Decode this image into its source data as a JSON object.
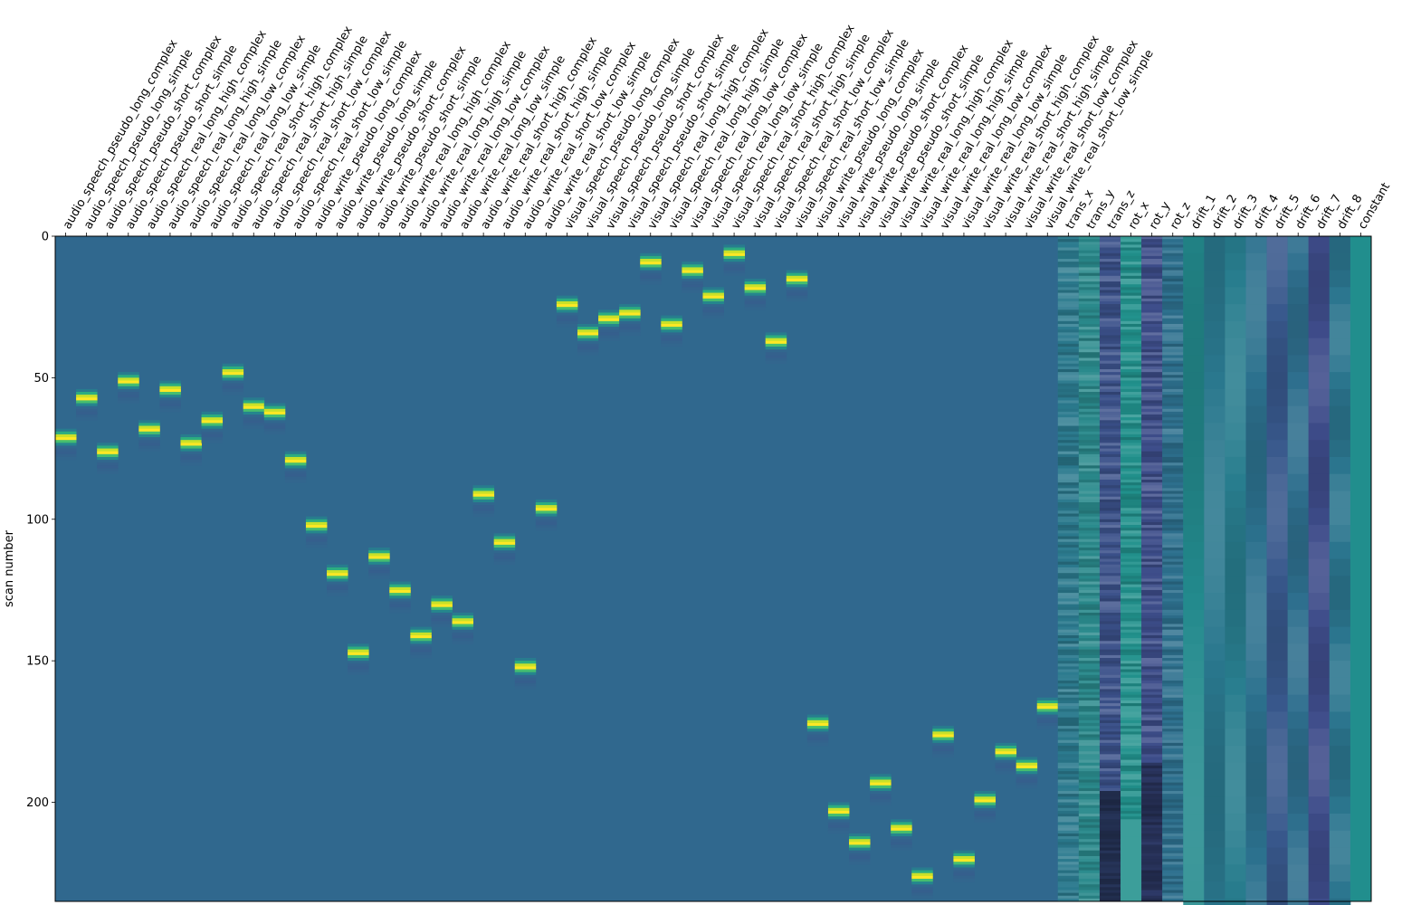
{
  "chart_data": {
    "type": "heatmap",
    "title": "",
    "xlabel": "",
    "ylabel": "scan number",
    "n_scans": 235,
    "ylim": [
      0,
      235
    ],
    "y_ticks": [
      0,
      50,
      100,
      150,
      200
    ],
    "grid": false,
    "legend": "none",
    "colormap": "viridis",
    "colors": {
      "background": "#30688e",
      "peak": "#fde725",
      "colormap_stops": [
        "#440154",
        "#482878",
        "#3e4989",
        "#31688e",
        "#26828e",
        "#1f9e89",
        "#35b779",
        "#6ece58",
        "#b5de2b",
        "#fde725"
      ]
    },
    "columns": [
      "audio_speech_pseudo_long_complex",
      "audio_speech_pseudo_long_simple",
      "audio_speech_pseudo_short_complex",
      "audio_speech_pseudo_short_simple",
      "audio_speech_real_long_high_complex",
      "audio_speech_real_long_high_simple",
      "audio_speech_real_long_low_complex",
      "audio_speech_real_long_low_simple",
      "audio_speech_real_short_high_complex",
      "audio_speech_real_short_high_simple",
      "audio_speech_real_short_low_complex",
      "audio_speech_real_short_low_simple",
      "audio_write_pseudo_long_complex",
      "audio_write_pseudo_long_simple",
      "audio_write_pseudo_short_complex",
      "audio_write_pseudo_short_simple",
      "audio_write_real_long_high_complex",
      "audio_write_real_long_high_simple",
      "audio_write_real_long_low_complex",
      "audio_write_real_long_low_simple",
      "audio_write_real_short_high_complex",
      "audio_write_real_short_high_simple",
      "audio_write_real_short_low_complex",
      "audio_write_real_short_low_simple",
      "visual_speech_pseudo_long_complex",
      "visual_speech_pseudo_long_simple",
      "visual_speech_pseudo_short_complex",
      "visual_speech_pseudo_short_simple",
      "visual_speech_real_long_high_complex",
      "visual_speech_real_long_high_simple",
      "visual_speech_real_long_low_complex",
      "visual_speech_real_long_low_simple",
      "visual_speech_real_short_high_complex",
      "visual_speech_real_short_high_simple",
      "visual_speech_real_short_low_complex",
      "visual_speech_real_short_low_simple",
      "visual_write_pseudo_long_complex",
      "visual_write_pseudo_long_simple",
      "visual_write_pseudo_short_complex",
      "visual_write_pseudo_short_simple",
      "visual_write_real_long_high_complex",
      "visual_write_real_long_high_simple",
      "visual_write_real_long_low_complex",
      "visual_write_real_long_low_simple",
      "visual_write_real_short_high_complex",
      "visual_write_real_short_high_simple",
      "visual_write_real_short_low_complex",
      "visual_write_real_short_low_simple",
      "trans_x",
      "trans_y",
      "trans_z",
      "rot_x",
      "rot_y",
      "rot_z",
      "drift_1",
      "drift_2",
      "drift_3",
      "drift_4",
      "drift_5",
      "drift_6",
      "drift_7",
      "drift_8",
      "constant"
    ],
    "condition_onset_scans": [
      71,
      57,
      76,
      51,
      68,
      54,
      73,
      65,
      48,
      60,
      62,
      79,
      102,
      119,
      147,
      113,
      125,
      141,
      130,
      136,
      91,
      108,
      152,
      96,
      24,
      34,
      29,
      27,
      9,
      31,
      12,
      21,
      6,
      18,
      37,
      15,
      172,
      203,
      214,
      193,
      209,
      226,
      176,
      220,
      199,
      182,
      187,
      166
    ],
    "regressor_base_colors": {
      "trans_x": "#2b7a8e",
      "trans_y": "#2a8a8c",
      "trans_z": "#3b518a",
      "rot_x": "#21918c",
      "rot_y": "#3d4d8a",
      "rot_z": "#2d708e",
      "drift_1": "#238a8d",
      "drift_2": "#2a788e",
      "drift_3": "#287d8e",
      "drift_4": "#2c718e",
      "drift_5": "#38588c",
      "drift_6": "#2e6f8e",
      "drift_7": "#3e4c8a",
      "drift_8": "#2b758e",
      "constant": "#218e8d"
    }
  }
}
